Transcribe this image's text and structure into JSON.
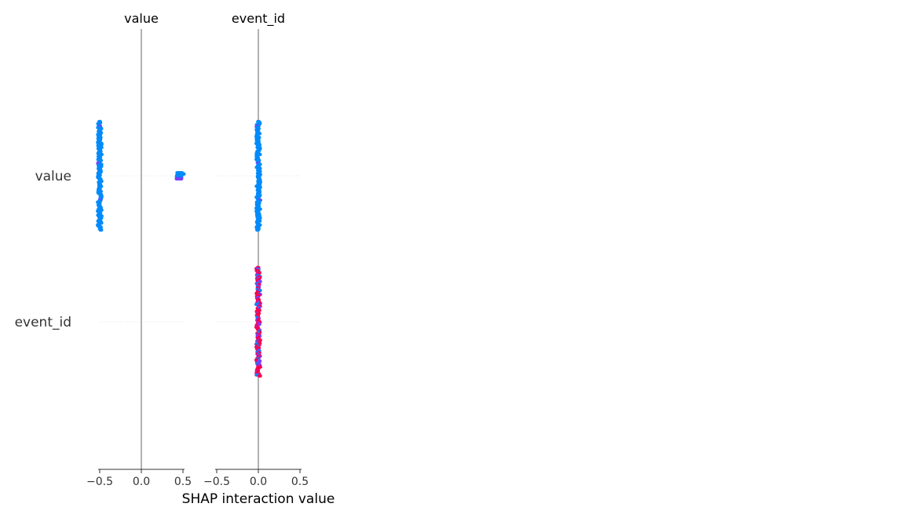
{
  "chart_data": {
    "type": "scatter",
    "subtype": "shap-interaction-summary",
    "xlabel": "SHAP interaction value",
    "columns": [
      "value",
      "event_id"
    ],
    "rows": [
      "value",
      "event_id"
    ],
    "xlim": [
      -0.5,
      0.5
    ],
    "x_ticks": [
      -0.5,
      0.0,
      0.5
    ],
    "x_tick_labels": [
      "−0.5",
      "0.0",
      "0.5"
    ],
    "colors": {
      "low": "#008bfb",
      "high": "#ff0051",
      "mid": "#7b3ffb",
      "zero_line": "#999999",
      "row_guide": "#cccccc"
    },
    "panels": [
      {
        "row": "value",
        "column": "value",
        "clusters": [
          {
            "x": -0.5,
            "spread": 0.36,
            "color": "low"
          },
          {
            "x": 0.47,
            "spread": 0.02,
            "color": "low"
          }
        ]
      },
      {
        "row": "value",
        "column": "event_id",
        "clusters": [
          {
            "x": 0.0,
            "spread": 0.36,
            "color": "low"
          }
        ]
      },
      {
        "row": "event_id",
        "column": "value",
        "clusters": []
      },
      {
        "row": "event_id",
        "column": "event_id",
        "clusters": [
          {
            "x": 0.0,
            "spread": 0.36,
            "color": "mixed"
          }
        ]
      }
    ]
  }
}
